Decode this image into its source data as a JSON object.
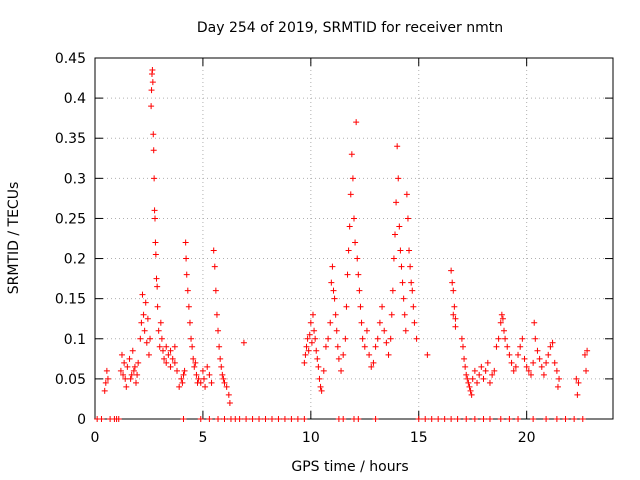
{
  "chart_data": {
    "type": "scatter",
    "title": "Day 254 of 2019, SRMTID for receiver nmtn",
    "xlabel": "GPS time / hours",
    "ylabel": "SRMTID / TECUs",
    "xlim": [
      0,
      24
    ],
    "ylim": [
      0,
      0.45
    ],
    "xticks": [
      0,
      5,
      10,
      15,
      20
    ],
    "yticks": [
      0,
      0.05,
      0.1,
      0.15,
      0.2,
      0.25,
      0.3,
      0.35,
      0.4,
      0.45
    ],
    "xtick_labels": [
      "0",
      "5",
      "10",
      "15",
      "20"
    ],
    "ytick_labels": [
      "0",
      "0.05",
      "0.1",
      "0.15",
      "0.2",
      "0.25",
      "0.3",
      "0.35",
      "0.4",
      "0.45"
    ],
    "grid": true,
    "marker": "+",
    "series": [
      {
        "name": "SRMTID",
        "color": "#ff0000",
        "points": [
          [
            0.1,
            0
          ],
          [
            0.3,
            0
          ],
          [
            0.45,
            0.035
          ],
          [
            0.5,
            0.045
          ],
          [
            0.55,
            0.06
          ],
          [
            0.6,
            0.05
          ],
          [
            0.7,
            0.0
          ],
          [
            0.9,
            0
          ],
          [
            1.0,
            0
          ],
          [
            1.1,
            0
          ],
          [
            1.2,
            0.06
          ],
          [
            1.3,
            0.055
          ],
          [
            1.35,
            0.07
          ],
          [
            1.4,
            0.05
          ],
          [
            1.5,
            0.065
          ],
          [
            1.6,
            0.075
          ],
          [
            1.7,
            0.055
          ],
          [
            1.8,
            0.06
          ],
          [
            1.9,
            0.045
          ],
          [
            2.0,
            0.07
          ],
          [
            1.25,
            0.08
          ],
          [
            1.45,
            0.04
          ],
          [
            1.65,
            0.05
          ],
          [
            1.75,
            0.085
          ],
          [
            1.85,
            0.065
          ],
          [
            1.95,
            0.055
          ],
          [
            2.1,
            0.1
          ],
          [
            2.15,
            0.12
          ],
          [
            2.2,
            0.155
          ],
          [
            2.25,
            0.13
          ],
          [
            2.3,
            0.11
          ],
          [
            2.35,
            0.145
          ],
          [
            2.4,
            0.095
          ],
          [
            2.45,
            0.125
          ],
          [
            2.5,
            0.08
          ],
          [
            2.55,
            0.1
          ],
          [
            2.6,
            0.39
          ],
          [
            2.62,
            0.41
          ],
          [
            2.64,
            0.43
          ],
          [
            2.66,
            0.435
          ],
          [
            2.68,
            0.42
          ],
          [
            2.7,
            0.355
          ],
          [
            2.72,
            0.335
          ],
          [
            2.74,
            0.3
          ],
          [
            2.76,
            0.26
          ],
          [
            2.78,
            0.25
          ],
          [
            2.8,
            0.22
          ],
          [
            2.82,
            0.205
          ],
          [
            2.85,
            0.175
          ],
          [
            2.88,
            0.165
          ],
          [
            2.9,
            0.14
          ],
          [
            2.95,
            0.11
          ],
          [
            3.0,
            0.09
          ],
          [
            3.05,
            0.12
          ],
          [
            3.1,
            0.1
          ],
          [
            3.15,
            0.085
          ],
          [
            3.2,
            0.075
          ],
          [
            3.3,
            0.07
          ],
          [
            3.4,
            0.08
          ],
          [
            3.5,
            0.065
          ],
          [
            3.6,
            0.075
          ],
          [
            3.7,
            0.07
          ],
          [
            3.8,
            0.06
          ],
          [
            3.3,
            0.09
          ],
          [
            3.5,
            0.085
          ],
          [
            3.7,
            0.09
          ],
          [
            3.9,
            0.04
          ],
          [
            4.0,
            0.05
          ],
          [
            4.05,
            0.045
          ],
          [
            4.1,
            0.055
          ],
          [
            4.15,
            0.06
          ],
          [
            4.2,
            0.22
          ],
          [
            4.22,
            0.2
          ],
          [
            4.25,
            0.18
          ],
          [
            4.3,
            0.16
          ],
          [
            4.35,
            0.14
          ],
          [
            4.4,
            0.12
          ],
          [
            4.45,
            0.1
          ],
          [
            4.5,
            0.09
          ],
          [
            4.55,
            0.075
          ],
          [
            4.6,
            0.065
          ],
          [
            4.65,
            0.07
          ],
          [
            4.7,
            0.055
          ],
          [
            4.75,
            0.045
          ],
          [
            4.8,
            0.05
          ],
          [
            4.9,
            0.045
          ],
          [
            5.0,
            0.06
          ],
          [
            5.05,
            0.05
          ],
          [
            5.1,
            0.04
          ],
          [
            5.2,
            0.065
          ],
          [
            5.3,
            0.055
          ],
          [
            5.4,
            0.045
          ],
          [
            5.5,
            0.21
          ],
          [
            5.55,
            0.19
          ],
          [
            5.6,
            0.16
          ],
          [
            5.65,
            0.13
          ],
          [
            5.7,
            0.11
          ],
          [
            5.75,
            0.09
          ],
          [
            5.8,
            0.075
          ],
          [
            5.85,
            0.065
          ],
          [
            5.9,
            0.055
          ],
          [
            5.95,
            0.05
          ],
          [
            6.0,
            0.045
          ],
          [
            6.1,
            0.04
          ],
          [
            6.2,
            0.03
          ],
          [
            6.25,
            0.02
          ],
          [
            4.1,
            0
          ],
          [
            4.9,
            0
          ],
          [
            5.3,
            0
          ],
          [
            5.7,
            0
          ],
          [
            6.0,
            0
          ],
          [
            6.3,
            0
          ],
          [
            6.5,
            0
          ],
          [
            6.7,
            0
          ],
          [
            7.0,
            0
          ],
          [
            7.3,
            0
          ],
          [
            7.6,
            0
          ],
          [
            7.9,
            0
          ],
          [
            8.2,
            0
          ],
          [
            8.5,
            0
          ],
          [
            8.8,
            0
          ],
          [
            9.1,
            0
          ],
          [
            9.4,
            0
          ],
          [
            9.7,
            0
          ],
          [
            6.9,
            0.095
          ],
          [
            9.7,
            0.07
          ],
          [
            9.75,
            0.08
          ],
          [
            9.8,
            0.09
          ],
          [
            9.85,
            0.1
          ],
          [
            9.9,
            0.085
          ],
          [
            9.95,
            0.105
          ],
          [
            10.0,
            0.12
          ],
          [
            10.05,
            0.095
          ],
          [
            10.1,
            0.13
          ],
          [
            10.15,
            0.11
          ],
          [
            10.2,
            0.1
          ],
          [
            10.25,
            0.085
          ],
          [
            10.3,
            0.075
          ],
          [
            10.35,
            0.065
          ],
          [
            10.4,
            0.05
          ],
          [
            10.45,
            0.04
          ],
          [
            10.5,
            0.035
          ],
          [
            10.6,
            0.06
          ],
          [
            10.7,
            0.09
          ],
          [
            10.8,
            0.1
          ],
          [
            10.9,
            0.12
          ],
          [
            10.95,
            0.17
          ],
          [
            11.0,
            0.19
          ],
          [
            11.05,
            0.16
          ],
          [
            11.1,
            0.15
          ],
          [
            11.15,
            0.13
          ],
          [
            11.2,
            0.11
          ],
          [
            11.25,
            0.09
          ],
          [
            11.3,
            0.075
          ],
          [
            11.4,
            0.06
          ],
          [
            11.5,
            0.08
          ],
          [
            11.6,
            0.1
          ],
          [
            11.65,
            0.14
          ],
          [
            11.7,
            0.18
          ],
          [
            11.75,
            0.21
          ],
          [
            11.8,
            0.24
          ],
          [
            11.85,
            0.28
          ],
          [
            11.9,
            0.33
          ],
          [
            11.95,
            0.3
          ],
          [
            12.0,
            0.25
          ],
          [
            12.05,
            0.22
          ],
          [
            12.1,
            0.37
          ],
          [
            12.15,
            0.2
          ],
          [
            12.2,
            0.18
          ],
          [
            12.25,
            0.16
          ],
          [
            12.3,
            0.14
          ],
          [
            12.35,
            0.12
          ],
          [
            12.4,
            0.1
          ],
          [
            12.5,
            0.09
          ],
          [
            12.6,
            0.11
          ],
          [
            12.7,
            0.08
          ],
          [
            12.8,
            0.065
          ],
          [
            12.9,
            0.07
          ],
          [
            13.0,
            0.09
          ],
          [
            13.1,
            0.1
          ],
          [
            13.2,
            0.12
          ],
          [
            13.3,
            0.14
          ],
          [
            13.4,
            0.11
          ],
          [
            13.5,
            0.095
          ],
          [
            13.6,
            0.08
          ],
          [
            13.7,
            0.1
          ],
          [
            13.75,
            0.13
          ],
          [
            13.8,
            0.16
          ],
          [
            13.85,
            0.2
          ],
          [
            13.9,
            0.23
          ],
          [
            13.95,
            0.27
          ],
          [
            14.0,
            0.34
          ],
          [
            14.05,
            0.3
          ],
          [
            14.1,
            0.24
          ],
          [
            14.15,
            0.21
          ],
          [
            14.2,
            0.19
          ],
          [
            14.25,
            0.17
          ],
          [
            14.3,
            0.15
          ],
          [
            14.35,
            0.13
          ],
          [
            14.4,
            0.11
          ],
          [
            14.45,
            0.28
          ],
          [
            14.5,
            0.25
          ],
          [
            14.55,
            0.21
          ],
          [
            14.6,
            0.19
          ],
          [
            14.65,
            0.17
          ],
          [
            14.7,
            0.16
          ],
          [
            14.75,
            0.14
          ],
          [
            14.8,
            0.12
          ],
          [
            14.9,
            0.1
          ],
          [
            11.3,
            0
          ],
          [
            11.5,
            0
          ],
          [
            12.0,
            0
          ],
          [
            12.2,
            0
          ],
          [
            13.0,
            0
          ],
          [
            15.0,
            0
          ],
          [
            15.3,
            0
          ],
          [
            15.6,
            0
          ],
          [
            15.9,
            0
          ],
          [
            16.2,
            0
          ],
          [
            16.5,
            0
          ],
          [
            16.8,
            0
          ],
          [
            17.2,
            0
          ],
          [
            17.6,
            0
          ],
          [
            18.0,
            0
          ],
          [
            18.3,
            0
          ],
          [
            18.8,
            0
          ],
          [
            19.2,
            0
          ],
          [
            19.6,
            0
          ],
          [
            20.3,
            0
          ],
          [
            20.9,
            0
          ],
          [
            21.4,
            0
          ],
          [
            21.8,
            0
          ],
          [
            22.2,
            0
          ],
          [
            22.6,
            0
          ],
          [
            15.4,
            0.08
          ],
          [
            16.5,
            0.185
          ],
          [
            16.55,
            0.17
          ],
          [
            16.6,
            0.16
          ],
          [
            16.65,
            0.14
          ],
          [
            16.7,
            0.125
          ],
          [
            16.6,
            0.13
          ],
          [
            16.7,
            0.115
          ],
          [
            17.0,
            0.1
          ],
          [
            17.05,
            0.09
          ],
          [
            17.1,
            0.075
          ],
          [
            17.15,
            0.065
          ],
          [
            17.2,
            0.055
          ],
          [
            17.25,
            0.05
          ],
          [
            17.3,
            0.045
          ],
          [
            17.35,
            0.04
          ],
          [
            17.4,
            0.035
          ],
          [
            17.45,
            0.03
          ],
          [
            17.5,
            0.05
          ],
          [
            17.6,
            0.06
          ],
          [
            17.7,
            0.045
          ],
          [
            17.8,
            0.055
          ],
          [
            17.9,
            0.065
          ],
          [
            18.0,
            0.05
          ],
          [
            18.1,
            0.06
          ],
          [
            18.2,
            0.07
          ],
          [
            18.3,
            0.045
          ],
          [
            18.4,
            0.055
          ],
          [
            18.5,
            0.06
          ],
          [
            18.6,
            0.09
          ],
          [
            18.7,
            0.1
          ],
          [
            18.8,
            0.12
          ],
          [
            18.85,
            0.13
          ],
          [
            18.9,
            0.125
          ],
          [
            18.95,
            0.11
          ],
          [
            19.0,
            0.1
          ],
          [
            19.1,
            0.09
          ],
          [
            19.2,
            0.08
          ],
          [
            19.3,
            0.07
          ],
          [
            19.4,
            0.06
          ],
          [
            19.5,
            0.065
          ],
          [
            19.6,
            0.08
          ],
          [
            19.7,
            0.09
          ],
          [
            19.8,
            0.1
          ],
          [
            19.9,
            0.075
          ],
          [
            20.0,
            0.065
          ],
          [
            20.1,
            0.06
          ],
          [
            20.2,
            0.055
          ],
          [
            20.3,
            0.07
          ],
          [
            20.35,
            0.12
          ],
          [
            20.4,
            0.1
          ],
          [
            20.5,
            0.085
          ],
          [
            20.6,
            0.075
          ],
          [
            20.7,
            0.065
          ],
          [
            20.8,
            0.055
          ],
          [
            20.9,
            0.07
          ],
          [
            21.0,
            0.08
          ],
          [
            21.1,
            0.09
          ],
          [
            21.2,
            0.095
          ],
          [
            21.3,
            0.07
          ],
          [
            21.4,
            0.06
          ],
          [
            21.45,
            0.04
          ],
          [
            21.5,
            0.05
          ],
          [
            22.3,
            0.05
          ],
          [
            22.35,
            0.03
          ],
          [
            22.4,
            0.045
          ],
          [
            22.7,
            0.08
          ],
          [
            22.8,
            0.085
          ],
          [
            22.75,
            0.06
          ]
        ]
      }
    ]
  }
}
